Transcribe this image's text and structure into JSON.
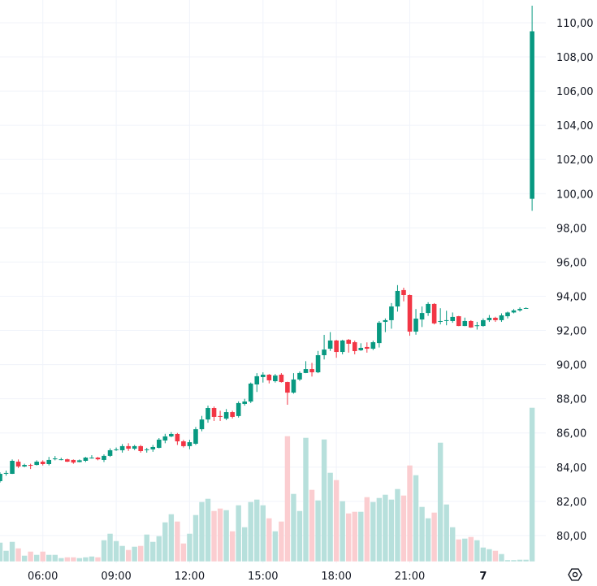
{
  "chart_data": {
    "type": "candlestick",
    "interval": "15m",
    "colors": {
      "up": "#089981",
      "down": "#f23645",
      "vol_up": "#b7e0dc",
      "vol_down": "#fbcdd0",
      "grid": "#f0f3fa",
      "text": "#131722"
    },
    "price_axis": {
      "min": 80,
      "max": 110,
      "ticks": [
        "80,00",
        "82,00",
        "84,00",
        "86,00",
        "88,00",
        "90,00",
        "92,00",
        "94,00",
        "96,00",
        "98,00",
        "100,00",
        "102,00",
        "104,00",
        "106,00",
        "108,00",
        "110,00"
      ],
      "tick_values": [
        80,
        82,
        84,
        86,
        88,
        90,
        92,
        94,
        96,
        98,
        100,
        102,
        104,
        106,
        108,
        110
      ]
    },
    "time_axis": [
      {
        "label": "06:00",
        "index": 7,
        "bold": false
      },
      {
        "label": "09:00",
        "index": 19,
        "bold": false
      },
      {
        "label": "12:00",
        "index": 31,
        "bold": false
      },
      {
        "label": "15:00",
        "index": 43,
        "bold": false
      },
      {
        "label": "18:00",
        "index": 55,
        "bold": false
      },
      {
        "label": "21:00",
        "index": 67,
        "bold": false
      },
      {
        "label": "7",
        "index": 79,
        "bold": true
      }
    ],
    "ohlc": [
      [
        83.18,
        83.7,
        83.1,
        83.61
      ],
      [
        83.66,
        83.8,
        83.5,
        83.66
      ],
      [
        83.61,
        84.45,
        83.6,
        84.37
      ],
      [
        84.32,
        84.45,
        83.95,
        84.04
      ],
      [
        84.04,
        84.2,
        84.0,
        84.13
      ],
      [
        84.13,
        84.2,
        83.89,
        84.1
      ],
      [
        84.13,
        84.4,
        84.1,
        84.32
      ],
      [
        84.32,
        84.4,
        84.1,
        84.18
      ],
      [
        84.18,
        84.6,
        84.1,
        84.42
      ],
      [
        84.51,
        84.65,
        84.4,
        84.51
      ],
      [
        84.46,
        84.55,
        84.4,
        84.46
      ],
      [
        84.46,
        84.5,
        84.3,
        84.32
      ],
      [
        84.42,
        84.45,
        84.2,
        84.27
      ],
      [
        84.3,
        84.45,
        84.28,
        84.4
      ],
      [
        84.37,
        84.6,
        84.3,
        84.56
      ],
      [
        84.56,
        84.7,
        84.5,
        84.56
      ],
      [
        84.56,
        84.6,
        84.4,
        84.46
      ],
      [
        84.42,
        84.75,
        84.3,
        84.66
      ],
      [
        84.66,
        85.1,
        84.6,
        84.99
      ],
      [
        85.04,
        85.15,
        84.95,
        85.04
      ],
      [
        84.99,
        85.35,
        84.85,
        85.23
      ],
      [
        85.23,
        85.4,
        84.95,
        85.08
      ],
      [
        85.08,
        85.3,
        85.0,
        85.23
      ],
      [
        85.23,
        85.3,
        84.85,
        84.94
      ],
      [
        85.04,
        85.13,
        84.85,
        85.04
      ],
      [
        85.04,
        85.3,
        84.9,
        85.18
      ],
      [
        85.13,
        85.7,
        85.1,
        85.61
      ],
      [
        85.56,
        85.95,
        85.4,
        85.8
      ],
      [
        85.8,
        86.05,
        85.75,
        85.94
      ],
      [
        85.94,
        86.0,
        85.3,
        85.51
      ],
      [
        85.51,
        85.6,
        85.15,
        85.23
      ],
      [
        85.23,
        85.6,
        85.05,
        85.46
      ],
      [
        85.37,
        86.35,
        85.3,
        86.22
      ],
      [
        86.22,
        87.0,
        86.1,
        86.79
      ],
      [
        86.79,
        87.6,
        86.6,
        87.46
      ],
      [
        87.46,
        87.55,
        86.7,
        86.94
      ],
      [
        86.99,
        87.3,
        86.7,
        86.94
      ],
      [
        86.84,
        87.4,
        86.75,
        87.22
      ],
      [
        87.22,
        87.3,
        86.85,
        86.94
      ],
      [
        86.99,
        87.85,
        86.9,
        87.75
      ],
      [
        87.7,
        88.0,
        87.6,
        87.84
      ],
      [
        87.84,
        88.95,
        87.75,
        88.89
      ],
      [
        88.84,
        89.5,
        88.4,
        89.32
      ],
      [
        89.27,
        89.55,
        88.95,
        89.41
      ],
      [
        89.41,
        89.45,
        88.9,
        89.08
      ],
      [
        89.03,
        89.45,
        88.95,
        89.36
      ],
      [
        89.41,
        89.5,
        88.95,
        88.98
      ],
      [
        88.98,
        89.0,
        87.65,
        88.36
      ],
      [
        88.36,
        89.5,
        88.3,
        89.13
      ],
      [
        89.13,
        89.6,
        89.05,
        89.51
      ],
      [
        89.51,
        90.2,
        89.5,
        89.74
      ],
      [
        89.74,
        90.1,
        89.3,
        89.55
      ],
      [
        89.55,
        90.8,
        89.5,
        90.55
      ],
      [
        90.55,
        91.74,
        90.3,
        90.88
      ],
      [
        90.93,
        91.9,
        90.8,
        91.41
      ],
      [
        91.41,
        91.45,
        90.4,
        90.74
      ],
      [
        90.74,
        91.45,
        90.6,
        91.41
      ],
      [
        91.45,
        91.5,
        90.7,
        91.22
      ],
      [
        91.31,
        91.4,
        90.6,
        90.79
      ],
      [
        90.84,
        91.25,
        90.8,
        90.98
      ],
      [
        91.03,
        91.3,
        90.7,
        90.93
      ],
      [
        90.93,
        91.4,
        90.85,
        91.31
      ],
      [
        91.26,
        92.55,
        91.0,
        92.45
      ],
      [
        92.5,
        92.7,
        91.9,
        92.6
      ],
      [
        92.6,
        93.6,
        92.1,
        93.4
      ],
      [
        93.4,
        94.65,
        93.1,
        94.31
      ],
      [
        94.36,
        94.5,
        93.7,
        94.07
      ],
      [
        94.07,
        94.1,
        91.69,
        91.93
      ],
      [
        91.93,
        93.25,
        91.75,
        92.69
      ],
      [
        92.64,
        93.4,
        92.2,
        93.02
      ],
      [
        93.02,
        93.65,
        92.85,
        93.55
      ],
      [
        93.55,
        93.6,
        92.35,
        92.41
      ],
      [
        92.5,
        93.3,
        92.35,
        92.55
      ],
      [
        92.6,
        93.15,
        92.3,
        92.6
      ],
      [
        92.55,
        93.05,
        92.45,
        92.79
      ],
      [
        92.83,
        92.85,
        92.25,
        92.26
      ],
      [
        92.26,
        92.75,
        92.25,
        92.55
      ],
      [
        92.55,
        92.6,
        92.15,
        92.17
      ],
      [
        92.3,
        92.5,
        92.05,
        92.3
      ],
      [
        92.26,
        92.7,
        92.22,
        92.6
      ],
      [
        92.6,
        92.9,
        92.5,
        92.74
      ],
      [
        92.74,
        92.8,
        92.5,
        92.6
      ],
      [
        92.6,
        93.0,
        92.5,
        92.88
      ],
      [
        92.83,
        93.1,
        92.7,
        93.05
      ],
      [
        93.05,
        93.25,
        93.0,
        93.17
      ],
      [
        93.17,
        93.35,
        93.1,
        93.26
      ],
      [
        93.31,
        93.35,
        93.27,
        93.31
      ],
      [
        99.7,
        111.0,
        99.0,
        109.5
      ]
    ],
    "volume": [
      23,
      13,
      24,
      16,
      7,
      12,
      8,
      12,
      8,
      8,
      4,
      5,
      5,
      4,
      5,
      6,
      5,
      26,
      34,
      25,
      19,
      14,
      18,
      19,
      33,
      24,
      31,
      48,
      58,
      49,
      22,
      34,
      57,
      73,
      77,
      62,
      65,
      63,
      37,
      69,
      42,
      73,
      76,
      69,
      53,
      37,
      49,
      154,
      83,
      62,
      152,
      88,
      75,
      150,
      109,
      100,
      74,
      59,
      61,
      61,
      79,
      73,
      78,
      82,
      76,
      89,
      81,
      118,
      106,
      67,
      53,
      60,
      146,
      70,
      42,
      27,
      28,
      30,
      26,
      17,
      15,
      13,
      9,
      1.5,
      1.5,
      2,
      2,
      189
    ]
  }
}
